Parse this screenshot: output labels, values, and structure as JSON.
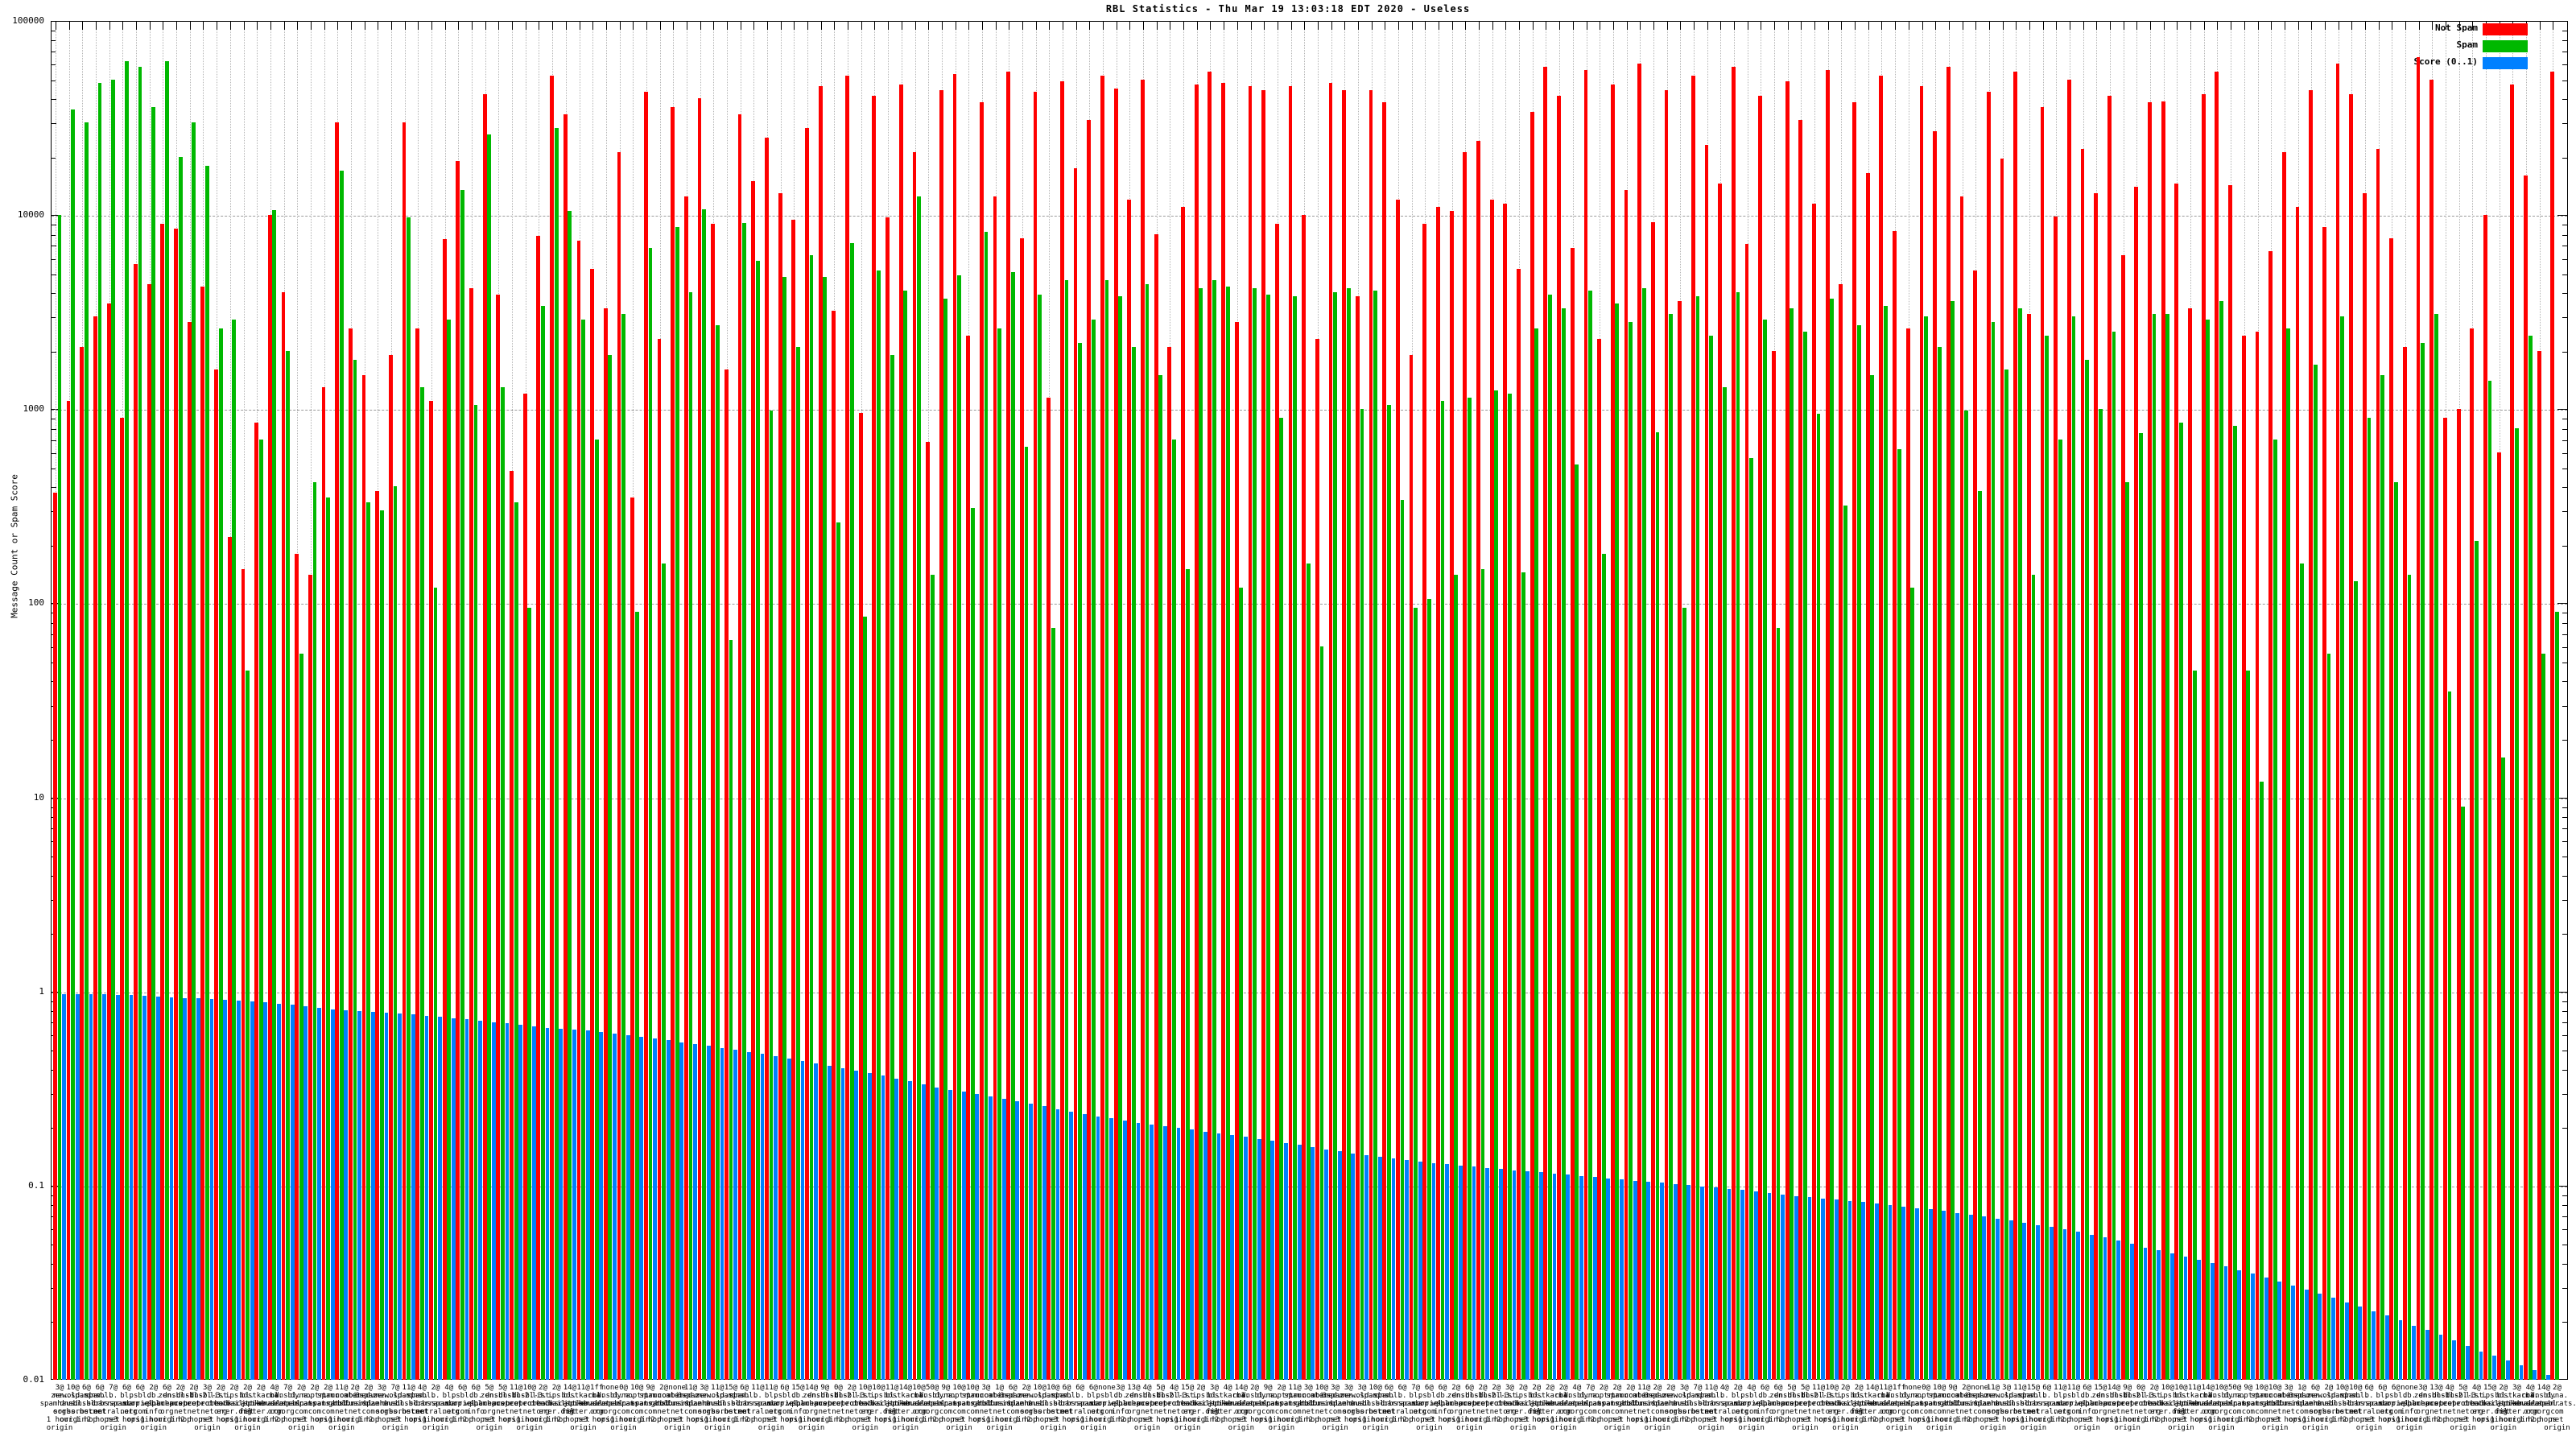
{
  "title": "RBL Statistics - Thu Mar 19 13:03:18 EDT 2020 - Useless",
  "ylabel": "Message Count or Spam Score",
  "legend": [
    {
      "label": "Not Spam",
      "color": "#ff0000"
    },
    {
      "label": "Spam",
      "color": "#00b800"
    },
    {
      "label": "Score (0..1)",
      "color": "#0080ff"
    }
  ],
  "colors": {
    "not_spam": "#ff0000",
    "spam": "#00b800",
    "score": "#0080ff",
    "grid": "#9a9a9a",
    "vgrid": "#b4b4b4",
    "axis": "#000000"
  },
  "chart_data": {
    "type": "bar",
    "title": "RBL Statistics - Thu Mar 19 13:03:18 EDT 2020 - Useless",
    "xlabel": "",
    "ylabel": "Message Count or Spam Score",
    "y_scale": "log",
    "ylim": [
      0.01,
      100000
    ],
    "ytick_labels": [
      "100000",
      "10000",
      "1000",
      "100",
      "10",
      "1",
      "0.1",
      "0.01"
    ],
    "grid": true,
    "legend_position": "top-right",
    "series": [
      {
        "name": "Not Spam",
        "color": "#ff0000",
        "values": [
          370,
          1100,
          2100,
          3000,
          3500,
          900,
          5600,
          4400,
          9000,
          8500,
          2800,
          4300,
          1600,
          220,
          150,
          850,
          10000,
          4000,
          180,
          140,
          1300,
          30000,
          2600,
          1500,
          380,
          1900,
          30000,
          2600,
          1100,
          7500,
          19000,
          4200,
          42000,
          3900,
          480,
          1200,
          7800,
          52000,
          33000,
          7400,
          5300,
          3300,
          21000,
          350,
          43000,
          2300,
          36000,
          12500,
          40000,
          9000,
          1600,
          33000,
          15000,
          25000,
          13000,
          9500,
          28000,
          46000,
          3200,
          52000,
          960,
          41000,
          9700,
          47000,
          21000,
          680,
          44000,
          53000,
          2400,
          38000,
          12500,
          55000,
          7600,
          43000,
          1150,
          49000,
          17500,
          31000,
          52000,
          45000,
          12000,
          50000,
          8000,
          2100,
          11000,
          47000,
          55000,
          48000,
          2800,
          46000,
          44000,
          9000,
          46000,
          10000,
          2300,
          48000,
          44000,
          3800,
          44000,
          38000,
          12000,
          1900,
          9000,
          11000,
          10500,
          21000,
          24000,
          12000,
          11500,
          5300,
          34000,
          58000,
          41000,
          6800,
          56000,
          2300,
          47000,
          13500,
          60000,
          9200,
          44000,
          3600,
          52000,
          23000,
          14500,
          58000,
          7100,
          41000,
          2000,
          49000,
          31000,
          11500,
          56000,
          4400,
          38000,
          16500,
          52000,
          8300,
          2600,
          46000,
          27000,
          58000,
          12500,
          5200,
          43000,
          19500,
          55000,
          3100,
          36000,
          9800,
          50000,
          22000,
          13000,
          41000,
          6200,
          14000,
          38000,
          38500,
          14500,
          3300,
          42000,
          55000,
          14200,
          2400,
          2500,
          6500,
          21000,
          11000,
          44000,
          8700,
          60000,
          42000,
          13000,
          22000,
          7600,
          2100,
          65000,
          50000,
          900,
          1000,
          2600,
          10000,
          600,
          47000,
          16000,
          2000,
          55000
        ]
      },
      {
        "name": "Spam",
        "color": "#00b800",
        "values": [
          10000,
          35000,
          30000,
          48000,
          50000,
          62000,
          58000,
          36000,
          62000,
          20000,
          30000,
          18000,
          2600,
          2900,
          45,
          700,
          10600,
          2000,
          55,
          420,
          350,
          17000,
          1800,
          330,
          300,
          400,
          9700,
          1300,
          120,
          2900,
          13500,
          1050,
          26000,
          1300,
          330,
          95,
          3400,
          28000,
          10500,
          2900,
          700,
          1900,
          3100,
          90,
          6800,
          160,
          8700,
          4000,
          10700,
          2700,
          65,
          9100,
          5800,
          980,
          4800,
          2100,
          6200,
          4800,
          260,
          7200,
          85,
          5200,
          1900,
          4100,
          12500,
          140,
          3700,
          4900,
          310,
          8200,
          2600,
          5100,
          640,
          3900,
          75,
          4600,
          2200,
          2900,
          4600,
          3800,
          2100,
          4400,
          1500,
          700,
          150,
          4200,
          4600,
          4300,
          120,
          4200,
          3900,
          900,
          3800,
          160,
          60,
          4000,
          4200,
          1000,
          4100,
          1050,
          340,
          95,
          105,
          1100,
          140,
          1150,
          150,
          1250,
          1200,
          145,
          2600,
          3900,
          3300,
          520,
          4100,
          180,
          3500,
          2800,
          4200,
          760,
          3100,
          95,
          3800,
          2400,
          1300,
          4000,
          560,
          2900,
          75,
          3300,
          2500,
          950,
          3700,
          320,
          2700,
          1500,
          3400,
          620,
          120,
          3000,
          2100,
          3600,
          980,
          380,
          2800,
          1600,
          3300,
          140,
          2400,
          700,
          3000,
          1800,
          1000,
          2500,
          420,
          750,
          3100,
          3100,
          850,
          45,
          2900,
          3600,
          820,
          45,
          12,
          700,
          2600,
          160,
          1700,
          55,
          3000,
          130,
          900,
          1500,
          420,
          140,
          2200,
          3100,
          35,
          9,
          210,
          1400,
          16,
          800,
          2400,
          55,
          90
        ]
      },
      {
        "name": "Score (0..1)",
        "color": "#0080ff",
        "values": [
          0.97,
          0.97,
          0.968,
          0.965,
          0.962,
          0.96,
          0.952,
          0.944,
          0.936,
          0.928,
          0.92,
          0.912,
          0.904,
          0.896,
          0.888,
          0.88,
          0.866,
          0.852,
          0.838,
          0.824,
          0.81,
          0.802,
          0.794,
          0.786,
          0.778,
          0.77,
          0.76,
          0.75,
          0.74,
          0.73,
          0.72,
          0.708,
          0.696,
          0.684,
          0.672,
          0.66,
          0.652,
          0.644,
          0.636,
          0.628,
          0.62,
          0.608,
          0.596,
          0.584,
          0.572,
          0.56,
          0.548,
          0.536,
          0.524,
          0.512,
          0.5,
          0.488,
          0.476,
          0.464,
          0.452,
          0.44,
          0.428,
          0.416,
          0.404,
          0.392,
          0.38,
          0.368,
          0.356,
          0.344,
          0.332,
          0.32,
          0.312,
          0.304,
          0.296,
          0.288,
          0.28,
          0.272,
          0.264,
          0.256,
          0.248,
          0.24,
          0.234,
          0.228,
          0.222,
          0.216,
          0.21,
          0.206,
          0.202,
          0.198,
          0.194,
          0.19,
          0.186,
          0.182,
          0.178,
          0.174,
          0.17,
          0.166,
          0.162,
          0.158,
          0.154,
          0.15,
          0.147,
          0.144,
          0.141,
          0.138,
          0.135,
          0.133,
          0.131,
          0.129,
          0.127,
          0.125,
          0.1234,
          0.1218,
          0.1202,
          0.1186,
          0.117,
          0.1154,
          0.1138,
          0.1122,
          0.1106,
          0.109,
          0.1076,
          0.1062,
          0.1048,
          0.1034,
          0.102,
          0.1006,
          0.0992,
          0.0978,
          0.0964,
          0.095,
          0.0934,
          0.0918,
          0.0902,
          0.0886,
          0.087,
          0.0858,
          0.0846,
          0.0834,
          0.0822,
          0.081,
          0.0796,
          0.0782,
          0.0768,
          0.0754,
          0.074,
          0.0724,
          0.0708,
          0.0692,
          0.0676,
          0.066,
          0.0644,
          0.0628,
          0.0612,
          0.0596,
          0.058,
          0.056,
          0.054,
          0.052,
          0.05,
          0.048,
          0.0464,
          0.0448,
          0.0432,
          0.0416,
          0.04,
          0.0384,
          0.0368,
          0.0352,
          0.0336,
          0.032,
          0.0306,
          0.0292,
          0.0278,
          0.0264,
          0.025,
          0.0238,
          0.0226,
          0.0214,
          0.0202,
          0.019,
          0.018,
          0.017,
          0.016,
          0.015,
          0.014,
          0.0133,
          0.0126,
          0.0119,
          0.0112,
          0.0106,
          0.01
        ]
      }
    ],
    "categories": [
      "3@|zen.|spamhaus.|org|1 hour|origin",
      "10@|new.spam.|dnsbl.|sorbs.net|origin",
      "6@|old.spam.|dnsbl.|sorbs.net|1 hop",
      "6@|dnsbl.|sorbs.|net|2 hops",
      "7@|b.|barracuda|central.org|net|origin",
      "6@|bl.|spamcop.|net|3 hops",
      "6@|psbl.|surriel.|com|origin",
      "2@|db.|wpbl.|info|1 hour|origin",
      "6@|zen.|spamhaus.|org|origin",
      "2@|dnsbl-1.|uceprotect.|net|1 hop",
      "2@|dnsbl-2.|uceprotect.|net|2 hops",
      "3@|dnsbl-3.|uceprotect.|net|net|origin",
      "2@|list.|dnswl.|org|3 hops",
      "2@|ips.|backscatt|erer.org|origin",
      "2@|bl.|mailspike.|net|1 hour|origin",
      "2@|hostkarma.|junkemail|filter.com|origin",
      "4@|cbl.|abuseat.|org|1 hop",
      "7@|dnsbl.|dronebl.|org|2 hops",
      "2@|dyna.|spamrats.|com|net|origin",
      "2@|noptr.|spamrats.|com|3 hops",
      "2@|spam.|spamrats.|com|origin",
      "11@|truncate.|gbudb.|net|1 hour|origin",
      "2@|combined.|rbl.msrbl.|net|origin",
      "2@|0spam.|fusionzero.|com|1 hop",
      "3@|zen.|spamhaus.|org|2 hops",
      "7@|new.spam.|dnsbl.|sorbs.net|net|origin",
      "11@|old.spam.|dnsbl.|sorbs.net|3 hops",
      "4@|dnsbl.|sorbs.|net|origin",
      "2@|b.|barracuda|central.org|1 hour|origin",
      "4@|bl.|spamcop.|net|origin",
      "6@|psbl.|surriel.|com|1 hop",
      "6@|db.|wpbl.|info|2 hops",
      "5@|zen.|spamhaus.|org|net|origin",
      "5@|dnsbl-1.|uceprotect.|net|3 hops",
      "11@|dnsbl-2.|uceprotect.|net|origin",
      "10@|dnsbl-3.|uceprotect.|net|1 hour|origin",
      "2@|list.|dnswl.|org|origin",
      "2@|ips.|backscatt|erer.org|1 hop",
      "14@|bl.|mailspike.|net|2 hops",
      "11@|hostkarma.|junkemail|filter.com|net|origin",
      "1ff|cbl.|abuseat.|org|3 hops",
      "none|dnsbl.|dronebl.|org|origin",
      "0@|dyna.|spamrats.|com|1 hour|origin",
      "10@|noptr.|spamrats.|com|origin",
      "9@|spam.|spamrats.|com|1 hop",
      "2@|truncate.|gbudb.|net|2 hops",
      "none|combined.|rbl.msrbl.|net|net|origin",
      "11@|0spam.|fusionzero.|com|3 hops",
      "3@|zen.|spamhaus.|org|origin",
      "11@|new.spam.|dnsbl.|sorbs.net|1 hour|origin",
      "15@|old.spam.|dnsbl.|sorbs.net|origin",
      "6@|dnsbl.|sorbs.|net|1 hop",
      "11@|b.|barracuda|central.org|2 hops",
      "11@|bl.|spamcop.|net|net|origin",
      "6@|psbl.|surriel.|com|3 hops",
      "15@|db.|wpbl.|info|origin",
      "14@|zen.|spamhaus.|org|1 hour|origin",
      "9@|dnsbl-1.|uceprotect.|net|origin",
      "0@|dnsbl-2.|uceprotect.|net|1 hop",
      "2@|dnsbl-3.|uceprotect.|net|2 hops",
      "10@|list.|dnswl.|org|net|origin",
      "10@|ips.|backscatt|erer.org|3 hops",
      "11@|bl.|mailspike.|net|origin",
      "14@|hostkarma.|junkemail|filter.com|1 hour|origin",
      "10@|cbl.|abuseat.|org|origin",
      "50@|dnsbl.|dronebl.|org|1 hop",
      "9@|dyna.|spamrats.|com|2 hops",
      "10@|noptr.|spamrats.|com|net|origin",
      "10@|spam.|spamrats.|com|3 hops",
      "3@|truncate.|gbudb.|net|origin",
      "1@|combined.|rbl.msrbl.|net|1 hour|origin",
      "6@|0spam.|fusionzero.|com|origin",
      "2@|zen.|spamhaus.|org|1 hop",
      "10@|new.spam.|dnsbl.|sorbs.net|2 hops",
      "10@|old.spam.|dnsbl.|sorbs.net|net|origin",
      "6@|dnsbl.|sorbs.|net|3 hops",
      "6@|b.|barracuda|central.org|origin",
      "6@|bl.|spamcop.|net|1 hour|origin",
      "none|psbl.|surriel.|com|origin",
      "3@|db.|wpbl.|info|1 hop",
      "13@|zen.|spamhaus.|org|2 hops",
      "4@|dnsbl-1.|uceprotect.|net|net|origin",
      "5@|dnsbl-2.|uceprotect.|net|3 hops",
      "4@|dnsbl-3.|uceprotect.|net|origin",
      "15@|list.|dnswl.|org|1 hour|origin",
      "2@|ips.|backscatt|erer.org|origin",
      "3@|bl.|mailspike.|net|1 hop",
      "4@|hostkarma.|junkemail|filter.com|2 hops",
      "14@|cbl.|abuseat.|org|net|origin",
      "2@|dnsbl.|dronebl.|org|3 hops",
      "9@|dyna.|spamrats.|com|origin",
      "2@|noptr.|spamrats.|com|1 hour|origin",
      "11@|spam.|spamrats.|com|origin",
      "3@|truncate.|gbudb.|net|1 hop",
      "10@|combined.|rbl.msrbl.|net|2 hops",
      "3@|0spam.|fusionzero.|com|net|origin",
      "3@|zen.|spamhaus.|org|3 hops",
      "3@|new.spam.|dnsbl.|sorbs.net|origin",
      "10@|old.spam.|dnsbl.|sorbs.net|1 hour|origin",
      "6@|dnsbl.|sorbs.|net|origin",
      "6@|b.|barracuda|central.org|1 hop",
      "7@|bl.|spamcop.|net|2 hops",
      "6@|psbl.|surriel.|com|net|origin",
      "6@|db.|wpbl.|info|3 hops",
      "2@|zen.|spamhaus.|org|origin",
      "6@|dnsbl-1.|uceprotect.|net|1 hour|origin",
      "2@|dnsbl-2.|uceprotect.|net|origin",
      "2@|dnsbl-3.|uceprotect.|net|1 hop",
      "3@|list.|dnswl.|org|2 hops",
      "2@|ips.|backscatt|erer.org|net|origin",
      "2@|bl.|mailspike.|net|3 hops",
      "2@|hostkarma.|junkemail|filter.com|origin",
      "2@|cbl.|abuseat.|org|1 hour|origin",
      "4@|dnsbl.|dronebl.|org|origin",
      "7@|dyna.|spamrats.|com|1 hop",
      "2@|noptr.|spamrats.|com|2 hops",
      "2@|spam.|spamrats.|com|net|origin",
      "2@|truncate.|gbudb.|net|3 hops",
      "11@|combined.|rbl.msrbl.|net|origin",
      "2@|0spam.|fusionzero.|com|1 hour|origin",
      "2@|zen.|spamhaus.|org|origin",
      "3@|new.spam.|dnsbl.|sorbs.net|1 hop",
      "7@|old.spam.|dnsbl.|sorbs.net|2 hops",
      "11@|dnsbl.|sorbs.|net|net|origin",
      "4@|b.|barracuda|central.org|3 hops",
      "2@|bl.|spamcop.|net|origin",
      "4@|psbl.|surriel.|com|1 hour|origin",
      "6@|db.|wpbl.|info|origin",
      "6@|zen.|spamhaus.|org|1 hop",
      "5@|dnsbl-1.|uceprotect.|net|2 hops",
      "5@|dnsbl-2.|uceprotect.|net|net|origin",
      "11@|dnsbl-3.|uceprotect.|net|3 hops",
      "10@|list.|dnswl.|org|origin",
      "2@|ips.|backscatt|erer.org|1 hour|origin",
      "2@|bl.|mailspike.|net|origin",
      "14@|hostkarma.|junkemail|filter.com|1 hop",
      "11@|cbl.|abuseat.|org|2 hops",
      "1ff|dnsbl.|dronebl.|org|net|origin",
      "none|dyna.|spamrats.|com|3 hops",
      "0@|noptr.|spamrats.|com|origin",
      "10@|spam.|spamrats.|com|1 hour|origin",
      "9@|truncate.|gbudb.|net|origin",
      "2@|combined.|rbl.msrbl.|net|1 hop",
      "none|0spam.|fusionzero.|com|2 hops",
      "11@|zen.|spamhaus.|org|net|origin",
      "3@|new.spam.|dnsbl.|sorbs.net|3 hops",
      "11@|old.spam.|dnsbl.|sorbs.net|origin",
      "15@|dnsbl.|sorbs.|net|1 hour|origin",
      "6@|b.|barracuda|central.org|origin",
      "11@|bl.|spamcop.|net|1 hop",
      "11@|psbl.|surriel.|com|2 hops",
      "6@|db.|wpbl.|info|net|origin",
      "15@|zen.|spamhaus.|org|3 hops",
      "14@|dnsbl-1.|uceprotect.|net|origin",
      "9@|dnsbl-2.|uceprotect.|net|1 hour|origin",
      "0@|dnsbl-3.|uceprotect.|net|origin",
      "2@|list.|dnswl.|org|1 hop",
      "10@|ips.|backscatt|erer.org|2 hops",
      "10@|bl.|mailspike.|net|net|origin",
      "11@|hostkarma.|junkemail|filter.com|3 hops",
      "14@|cbl.|abuseat.|org|origin",
      "10@|dnsbl.|dronebl.|org|1 hour|origin",
      "50@|dyna.|spamrats.|com|origin",
      "9@|noptr.|spamrats.|com|1 hop",
      "10@|spam.|spamrats.|com|2 hops",
      "10@|truncate.|gbudb.|net|net|origin",
      "3@|combined.|rbl.msrbl.|net|3 hops",
      "1@|0spam.|fusionzero.|com|origin",
      "6@|zen.|spamhaus.|org|1 hour|origin",
      "2@|new.spam.|dnsbl.|sorbs.net|origin",
      "10@|old.spam.|dnsbl.|sorbs.net|1 hop",
      "10@|dnsbl.|sorbs.|net|2 hops",
      "6@|b.|barracuda|central.org|net|origin",
      "6@|bl.|spamcop.|net|3 hops",
      "6@|psbl.|surriel.|com|origin",
      "none|db.|wpbl.|info|1 hour|origin",
      "3@|zen.|spamhaus.|org|origin",
      "13@|dnsbl-1.|uceprotect.|net|1 hop",
      "4@|dnsbl-2.|uceprotect.|net|2 hops",
      "5@|dnsbl-3.|uceprotect.|net|net|origin",
      "4@|list.|dnswl.|org|3 hops",
      "15@|ips.|backscatt|erer.org|origin",
      "2@|bl.|mailspike.|net|1 hour|origin",
      "3@|hostkarma.|junkemail|filter.com|origin",
      "4@|cbl.|abuseat.|org|1 hop",
      "14@|dnsbl.|dronebl.|org|2 hops",
      "2@|dyna.|spamrats.|com|net|origin"
    ]
  }
}
